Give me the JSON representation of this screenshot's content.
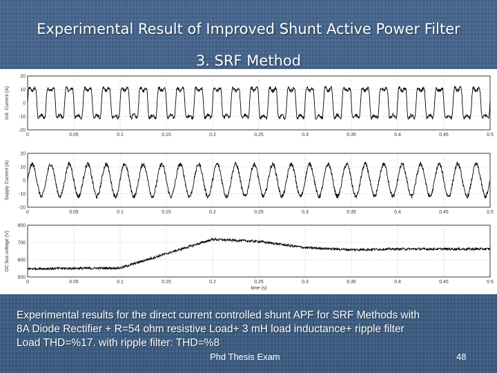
{
  "slide": {
    "title_line1": "Experimental Result of Improved  Shunt Active Power Filter",
    "title_line2": "3. SRF Method",
    "caption_line1": "Experimental results for the direct current controlled shunt APF for SRF Methods with",
    "caption_line2": "8A Diode Rectifier + R=54 ohm resistive Load+ 3 mH load inductance+ ripple filter",
    "caption_line3": "Load THD=%17.  with ripple filter: THD=%8",
    "footer_label": "Phd Thesis Exam",
    "page_number": "48"
  },
  "chart_data": [
    {
      "type": "line",
      "ylabel": "Ind. Current (A)",
      "xlim": [
        0,
        0.5
      ],
      "ylim": [
        -20,
        20
      ],
      "xticks": [
        "0",
        "0.05",
        "0.1",
        "0.15",
        "0.2",
        "0.25",
        "0.3",
        "0.35",
        "0.4",
        "0.45",
        "0.5"
      ],
      "yticks": [
        "20",
        "10",
        "0",
        "-10",
        "-20"
      ],
      "grid": true,
      "waveform": {
        "shape": "square-ish",
        "frequency_hz": 50,
        "amplitude": 13,
        "noise": 1.3
      }
    },
    {
      "type": "line",
      "ylabel": "Supply Current (A)",
      "xlim": [
        0,
        0.5
      ],
      "ylim": [
        -20,
        20
      ],
      "xticks": [
        "0",
        "0.05",
        "0.1",
        "0.15",
        "0.2",
        "0.25",
        "0.3",
        "0.35",
        "0.4",
        "0.45",
        "0.5"
      ],
      "yticks": [
        "20",
        "10",
        "0",
        "-10",
        "-20"
      ],
      "grid": true,
      "waveform": {
        "shape": "sine",
        "frequency_hz": 50,
        "amplitude": 12,
        "noise": 1.6
      }
    },
    {
      "type": "line",
      "xlabel": "time (s)",
      "ylabel": "DC bus voltage (V)",
      "xlim": [
        0,
        0.5
      ],
      "ylim": [
        500,
        800
      ],
      "xticks": [
        "0",
        "0.05",
        "0.1",
        "0.15",
        "0.2",
        "0.25",
        "0.3",
        "0.35",
        "0.4",
        "0.45",
        "0.5"
      ],
      "yticks": [
        "800",
        "700",
        "600",
        "500"
      ],
      "grid": true,
      "profile": {
        "x": [
          0,
          0.1,
          0.2,
          0.25,
          0.3,
          0.35,
          0.4,
          0.5
        ],
        "y": [
          548,
          552,
          718,
          706,
          670,
          658,
          662,
          662
        ],
        "noise": 7
      }
    }
  ]
}
